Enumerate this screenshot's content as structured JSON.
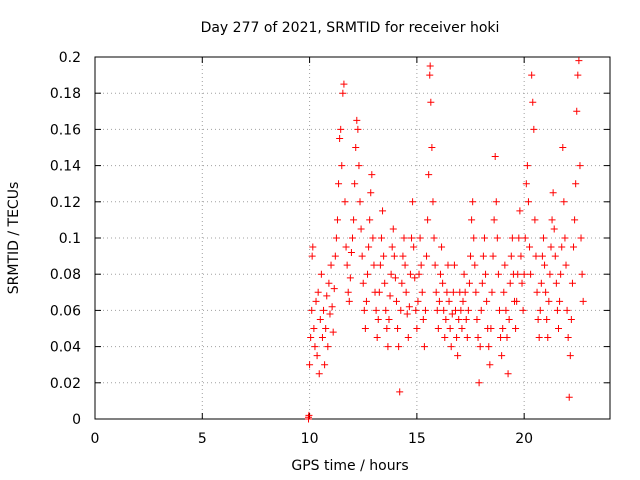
{
  "chart_data": {
    "type": "scatter",
    "title": "Day 277 of 2021, SRMTID for receiver hoki",
    "xlabel": "GPS time / hours",
    "ylabel": "SRMTID / TECUs",
    "xlim": [
      0,
      24
    ],
    "ylim": [
      0,
      0.2
    ],
    "x_ticks": [
      0,
      5,
      10,
      15,
      20
    ],
    "x_tick_labels": [
      "0",
      "5",
      "10",
      "15",
      "20"
    ],
    "y_ticks": [
      0,
      0.02,
      0.04,
      0.06,
      0.08,
      0.1,
      0.12,
      0.14,
      0.16,
      0.18,
      0.2
    ],
    "y_tick_labels": [
      "0",
      "0.02",
      "0.04",
      "0.06",
      "0.08",
      "0.1",
      "0.12",
      "0.14",
      "0.16",
      "0.18",
      "0.2"
    ],
    "grid": true,
    "marker": "+",
    "color": "#ff0000",
    "series": [
      {
        "name": "SRMTID",
        "points": [
          [
            9.95,
            0.0
          ],
          [
            9.95,
            0.001
          ],
          [
            9.97,
            0.002
          ],
          [
            10.0,
            0.03
          ],
          [
            10.05,
            0.045
          ],
          [
            10.1,
            0.06
          ],
          [
            10.12,
            0.09
          ],
          [
            10.15,
            0.095
          ],
          [
            10.2,
            0.05
          ],
          [
            10.25,
            0.04
          ],
          [
            10.3,
            0.065
          ],
          [
            10.35,
            0.035
          ],
          [
            10.4,
            0.07
          ],
          [
            10.45,
            0.025
          ],
          [
            10.5,
            0.055
          ],
          [
            10.55,
            0.08
          ],
          [
            10.6,
            0.045
          ],
          [
            10.65,
            0.06
          ],
          [
            10.7,
            0.03
          ],
          [
            10.75,
            0.05
          ],
          [
            10.8,
            0.068
          ],
          [
            10.85,
            0.04
          ],
          [
            10.9,
            0.075
          ],
          [
            10.95,
            0.058
          ],
          [
            11.0,
            0.085
          ],
          [
            11.05,
            0.062
          ],
          [
            11.1,
            0.048
          ],
          [
            11.15,
            0.072
          ],
          [
            11.2,
            0.09
          ],
          [
            11.25,
            0.1
          ],
          [
            11.3,
            0.11
          ],
          [
            11.35,
            0.13
          ],
          [
            11.4,
            0.155
          ],
          [
            11.45,
            0.16
          ],
          [
            11.5,
            0.14
          ],
          [
            11.55,
            0.18
          ],
          [
            11.6,
            0.185
          ],
          [
            11.65,
            0.12
          ],
          [
            11.7,
            0.095
          ],
          [
            11.75,
            0.085
          ],
          [
            11.8,
            0.07
          ],
          [
            11.85,
            0.065
          ],
          [
            11.9,
            0.078
          ],
          [
            11.95,
            0.092
          ],
          [
            12.0,
            0.1
          ],
          [
            12.05,
            0.11
          ],
          [
            12.1,
            0.13
          ],
          [
            12.15,
            0.15
          ],
          [
            12.2,
            0.165
          ],
          [
            12.25,
            0.16
          ],
          [
            12.3,
            0.14
          ],
          [
            12.35,
            0.12
          ],
          [
            12.4,
            0.105
          ],
          [
            12.45,
            0.09
          ],
          [
            12.5,
            0.075
          ],
          [
            12.55,
            0.06
          ],
          [
            12.6,
            0.05
          ],
          [
            12.65,
            0.065
          ],
          [
            12.7,
            0.08
          ],
          [
            12.75,
            0.095
          ],
          [
            12.8,
            0.11
          ],
          [
            12.85,
            0.125
          ],
          [
            12.9,
            0.135
          ],
          [
            12.95,
            0.1
          ],
          [
            13.0,
            0.085
          ],
          [
            13.05,
            0.07
          ],
          [
            13.1,
            0.06
          ],
          [
            13.15,
            0.045
          ],
          [
            13.2,
            0.055
          ],
          [
            13.25,
            0.07
          ],
          [
            13.3,
            0.085
          ],
          [
            13.35,
            0.1
          ],
          [
            13.4,
            0.115
          ],
          [
            13.45,
            0.09
          ],
          [
            13.5,
            0.075
          ],
          [
            13.55,
            0.06
          ],
          [
            13.6,
            0.05
          ],
          [
            13.65,
            0.04
          ],
          [
            13.7,
            0.055
          ],
          [
            13.75,
            0.068
          ],
          [
            13.8,
            0.08
          ],
          [
            13.85,
            0.095
          ],
          [
            13.9,
            0.105
          ],
          [
            13.95,
            0.09
          ],
          [
            14.0,
            0.078
          ],
          [
            14.05,
            0.065
          ],
          [
            14.1,
            0.05
          ],
          [
            14.15,
            0.04
          ],
          [
            14.2,
            0.015
          ],
          [
            14.25,
            0.06
          ],
          [
            14.3,
            0.075
          ],
          [
            14.35,
            0.09
          ],
          [
            14.4,
            0.1
          ],
          [
            14.45,
            0.085
          ],
          [
            14.5,
            0.07
          ],
          [
            14.55,
            0.058
          ],
          [
            14.6,
            0.045
          ],
          [
            14.65,
            0.062
          ],
          [
            14.7,
            0.08
          ],
          [
            14.75,
            0.1
          ],
          [
            14.8,
            0.12
          ],
          [
            14.85,
            0.095
          ],
          [
            14.9,
            0.078
          ],
          [
            14.95,
            0.06
          ],
          [
            15.0,
            0.05
          ],
          [
            15.05,
            0.065
          ],
          [
            15.1,
            0.08
          ],
          [
            15.15,
            0.1
          ],
          [
            15.2,
            0.085
          ],
          [
            15.25,
            0.07
          ],
          [
            15.3,
            0.055
          ],
          [
            15.35,
            0.04
          ],
          [
            15.4,
            0.06
          ],
          [
            15.45,
            0.09
          ],
          [
            15.5,
            0.11
          ],
          [
            15.55,
            0.135
          ],
          [
            15.6,
            0.19
          ],
          [
            15.62,
            0.195
          ],
          [
            15.65,
            0.175
          ],
          [
            15.7,
            0.15
          ],
          [
            15.75,
            0.12
          ],
          [
            15.8,
            0.1
          ],
          [
            15.85,
            0.085
          ],
          [
            15.9,
            0.07
          ],
          [
            15.95,
            0.06
          ],
          [
            16.0,
            0.05
          ],
          [
            16.05,
            0.065
          ],
          [
            16.1,
            0.08
          ],
          [
            16.15,
            0.095
          ],
          [
            16.2,
            0.075
          ],
          [
            16.25,
            0.06
          ],
          [
            16.3,
            0.045
          ],
          [
            16.35,
            0.055
          ],
          [
            16.4,
            0.07
          ],
          [
            16.45,
            0.085
          ],
          [
            16.5,
            0.065
          ],
          [
            16.55,
            0.05
          ],
          [
            16.6,
            0.04
          ],
          [
            16.65,
            0.058
          ],
          [
            16.7,
            0.07
          ],
          [
            16.75,
            0.085
          ],
          [
            16.8,
            0.06
          ],
          [
            16.85,
            0.045
          ],
          [
            16.9,
            0.035
          ],
          [
            16.95,
            0.055
          ],
          [
            17.0,
            0.07
          ],
          [
            17.05,
            0.06
          ],
          [
            17.1,
            0.05
          ],
          [
            17.15,
            0.065
          ],
          [
            17.2,
            0.08
          ],
          [
            17.25,
            0.07
          ],
          [
            17.3,
            0.055
          ],
          [
            17.35,
            0.045
          ],
          [
            17.4,
            0.06
          ],
          [
            17.45,
            0.075
          ],
          [
            17.5,
            0.09
          ],
          [
            17.55,
            0.11
          ],
          [
            17.6,
            0.12
          ],
          [
            17.65,
            0.1
          ],
          [
            17.7,
            0.085
          ],
          [
            17.75,
            0.07
          ],
          [
            17.8,
            0.055
          ],
          [
            17.85,
            0.045
          ],
          [
            17.9,
            0.02
          ],
          [
            17.95,
            0.04
          ],
          [
            18.0,
            0.06
          ],
          [
            18.05,
            0.075
          ],
          [
            18.1,
            0.09
          ],
          [
            18.15,
            0.1
          ],
          [
            18.2,
            0.08
          ],
          [
            18.25,
            0.065
          ],
          [
            18.3,
            0.05
          ],
          [
            18.35,
            0.04
          ],
          [
            18.4,
            0.03
          ],
          [
            18.45,
            0.05
          ],
          [
            18.5,
            0.07
          ],
          [
            18.55,
            0.09
          ],
          [
            18.6,
            0.11
          ],
          [
            18.65,
            0.145
          ],
          [
            18.7,
            0.12
          ],
          [
            18.75,
            0.1
          ],
          [
            18.8,
            0.08
          ],
          [
            18.85,
            0.06
          ],
          [
            18.9,
            0.045
          ],
          [
            18.95,
            0.035
          ],
          [
            19.0,
            0.05
          ],
          [
            19.05,
            0.07
          ],
          [
            19.1,
            0.085
          ],
          [
            19.15,
            0.06
          ],
          [
            19.2,
            0.045
          ],
          [
            19.25,
            0.025
          ],
          [
            19.3,
            0.055
          ],
          [
            19.35,
            0.075
          ],
          [
            19.4,
            0.09
          ],
          [
            19.45,
            0.1
          ],
          [
            19.5,
            0.08
          ],
          [
            19.55,
            0.065
          ],
          [
            19.6,
            0.05
          ],
          [
            19.65,
            0.065
          ],
          [
            19.7,
            0.08
          ],
          [
            19.75,
            0.1
          ],
          [
            19.8,
            0.115
          ],
          [
            19.85,
            0.09
          ],
          [
            19.9,
            0.075
          ],
          [
            19.95,
            0.06
          ],
          [
            20.0,
            0.08
          ],
          [
            20.05,
            0.1
          ],
          [
            20.1,
            0.13
          ],
          [
            20.15,
            0.14
          ],
          [
            20.2,
            0.12
          ],
          [
            20.25,
            0.095
          ],
          [
            20.3,
            0.08
          ],
          [
            20.35,
            0.19
          ],
          [
            20.4,
            0.175
          ],
          [
            20.45,
            0.16
          ],
          [
            20.5,
            0.11
          ],
          [
            20.55,
            0.09
          ],
          [
            20.6,
            0.07
          ],
          [
            20.65,
            0.055
          ],
          [
            20.7,
            0.045
          ],
          [
            20.75,
            0.06
          ],
          [
            20.8,
            0.075
          ],
          [
            20.85,
            0.09
          ],
          [
            20.9,
            0.1
          ],
          [
            20.95,
            0.085
          ],
          [
            21.0,
            0.07
          ],
          [
            21.05,
            0.055
          ],
          [
            21.1,
            0.045
          ],
          [
            21.15,
            0.065
          ],
          [
            21.2,
            0.08
          ],
          [
            21.25,
            0.095
          ],
          [
            21.3,
            0.11
          ],
          [
            21.35,
            0.125
          ],
          [
            21.4,
            0.105
          ],
          [
            21.45,
            0.09
          ],
          [
            21.5,
            0.075
          ],
          [
            21.55,
            0.06
          ],
          [
            21.6,
            0.05
          ],
          [
            21.65,
            0.065
          ],
          [
            21.7,
            0.08
          ],
          [
            21.75,
            0.095
          ],
          [
            21.8,
            0.15
          ],
          [
            21.85,
            0.12
          ],
          [
            21.9,
            0.1
          ],
          [
            21.95,
            0.085
          ],
          [
            22.0,
            0.06
          ],
          [
            22.05,
            0.045
          ],
          [
            22.1,
            0.012
          ],
          [
            22.15,
            0.035
          ],
          [
            22.2,
            0.055
          ],
          [
            22.25,
            0.075
          ],
          [
            22.3,
            0.095
          ],
          [
            22.35,
            0.11
          ],
          [
            22.4,
            0.13
          ],
          [
            22.45,
            0.17
          ],
          [
            22.5,
            0.19
          ],
          [
            22.55,
            0.198
          ],
          [
            22.6,
            0.14
          ],
          [
            22.65,
            0.1
          ],
          [
            22.7,
            0.08
          ],
          [
            22.75,
            0.065
          ]
        ]
      }
    ]
  }
}
